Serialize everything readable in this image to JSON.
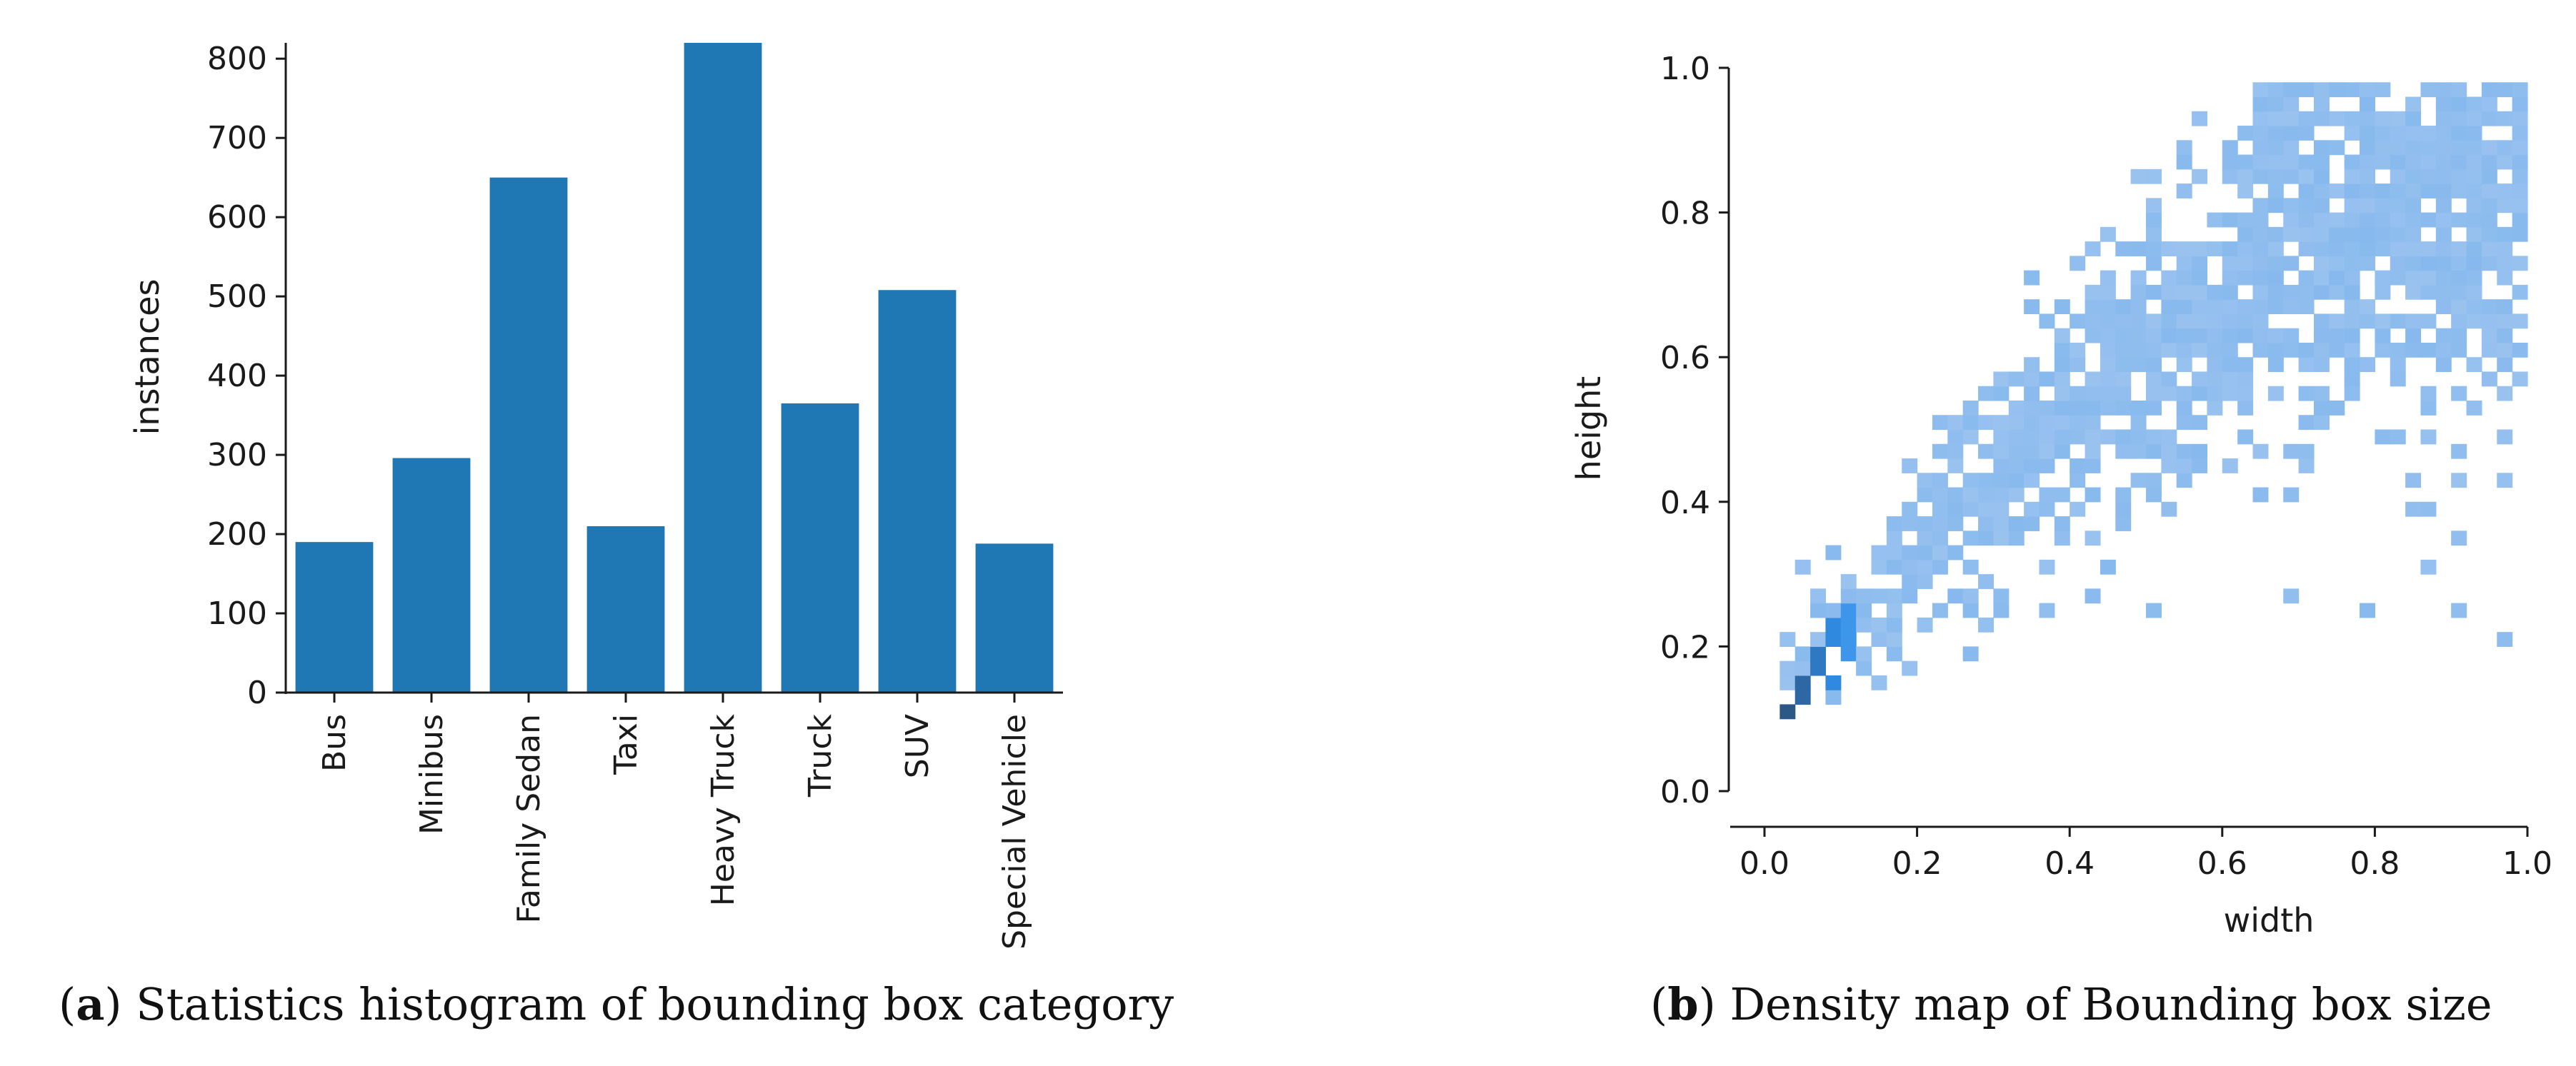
{
  "chart_data": [
    {
      "type": "bar",
      "categories": [
        "Bus",
        "Minibus",
        "Family Sedan",
        "Taxi",
        "Heavy Truck",
        "Truck",
        "SUV",
        "Special Vehicle"
      ],
      "values": [
        190,
        296,
        650,
        210,
        820,
        365,
        508,
        188
      ],
      "title": "",
      "xlabel": "",
      "ylabel": "instances",
      "ylim": [
        0,
        820
      ],
      "yticks": [
        0,
        100,
        200,
        300,
        400,
        500,
        600,
        700,
        800
      ],
      "color": "#1f77b4",
      "grid": false
    },
    {
      "type": "heatmap",
      "title": "",
      "xlabel": "width",
      "ylabel": "height",
      "xlim": [
        0,
        1
      ],
      "ylim": [
        0,
        1
      ],
      "xticks": [
        0.0,
        0.2,
        0.4,
        0.6,
        0.8,
        1.0
      ],
      "yticks": [
        0.0,
        0.2,
        0.4,
        0.6,
        0.8,
        1.0
      ],
      "bins": 50,
      "colors": {
        "light": "#a6c8f0",
        "mid": "#2f8fe8",
        "dark": "#2a3346"
      },
      "grid": false
    }
  ],
  "captions": {
    "a": {
      "label": "a",
      "text": "Statistics histogram of bounding box category"
    },
    "b": {
      "label": "b",
      "text": "Density map of Bounding box size"
    }
  }
}
